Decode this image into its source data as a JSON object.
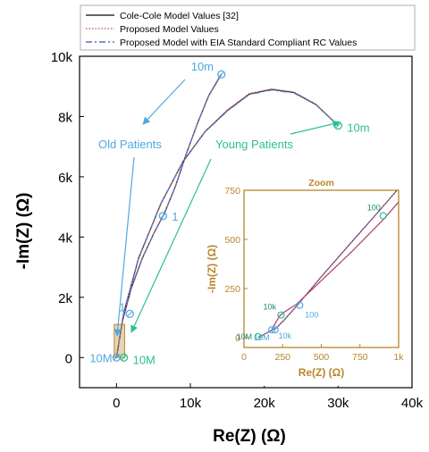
{
  "colors": {
    "cole": "#333333",
    "proposed": "#d4606e",
    "eia": "#5a72c8",
    "old": "#4fa9e0",
    "young": "#2bbf98",
    "inset": "#b8862b"
  },
  "chart_data": [
    {
      "type": "line",
      "xlabel": "Re(Z) (Ω)",
      "ylabel": "-Im(Z) (Ω)",
      "xlim": [
        -5000,
        40000
      ],
      "ylim": [
        -1000,
        10000
      ],
      "x_ticks": [
        {
          "v": 0,
          "label": "0"
        },
        {
          "v": 10000,
          "label": "10k"
        },
        {
          "v": 20000,
          "label": "20k"
        },
        {
          "v": 30000,
          "label": "30k"
        },
        {
          "v": 40000,
          "label": "40k"
        }
      ],
      "y_ticks": [
        {
          "v": 0,
          "label": "0"
        },
        {
          "v": 2000,
          "label": "2k"
        },
        {
          "v": 4000,
          "label": "4k"
        },
        {
          "v": 6000,
          "label": "6k"
        },
        {
          "v": 8000,
          "label": "8k"
        },
        {
          "v": 10000,
          "label": "10k"
        }
      ],
      "legend_position": "top",
      "legend": [
        {
          "label": "Cole-Cole Model Values [32]",
          "style": "solid",
          "color": "#333333"
        },
        {
          "label": "Proposed Model Values",
          "style": "dotted",
          "color": "#d4606e"
        },
        {
          "label": "Proposed Model with EIA Standard Compliant RC Values",
          "style": "dashdot",
          "color": "#5a72c8"
        }
      ],
      "series": [
        {
          "group": "old",
          "style": "solid",
          "x": [
            0,
            800,
            2000,
            3500,
            5000,
            6500,
            8000,
            9500,
            11000,
            12500,
            14200
          ],
          "y": [
            0,
            1200,
            2300,
            3300,
            4100,
            4800,
            5700,
            6800,
            7800,
            8700,
            9400
          ]
        },
        {
          "group": "old",
          "style": "dotted",
          "x": [
            0,
            800,
            2000,
            3500,
            5000,
            6500,
            8000,
            9500,
            11000,
            12500,
            14200
          ],
          "y": [
            0,
            1180,
            2280,
            3290,
            4110,
            4810,
            5710,
            6810,
            7790,
            8690,
            9380
          ]
        },
        {
          "group": "old",
          "style": "dashdot",
          "x": [
            0,
            800,
            2000,
            3500,
            5000,
            6500,
            8000,
            9500,
            11000,
            12500,
            14200
          ],
          "y": [
            0,
            1220,
            2320,
            3320,
            4090,
            4790,
            5690,
            6790,
            7810,
            8710,
            9420
          ]
        },
        {
          "group": "young",
          "style": "solid",
          "x": [
            0,
            1000,
            3000,
            6000,
            9000,
            12000,
            15000,
            18000,
            21000,
            24000,
            27000,
            30000
          ],
          "y": [
            0,
            1500,
            3300,
            5100,
            6500,
            7500,
            8200,
            8750,
            8900,
            8800,
            8400,
            7700
          ]
        },
        {
          "group": "young",
          "style": "dotted",
          "x": [
            0,
            1000,
            3000,
            6000,
            9000,
            12000,
            15000,
            18000,
            21000,
            24000,
            27000,
            30000
          ],
          "y": [
            0,
            1480,
            3280,
            5090,
            6510,
            7510,
            8220,
            8770,
            8920,
            8820,
            8410,
            7700
          ]
        },
        {
          "group": "young",
          "style": "dashdot",
          "x": [
            0,
            1000,
            3000,
            6000,
            9000,
            12000,
            15000,
            18000,
            21000,
            24000,
            27000,
            30000
          ],
          "y": [
            0,
            1520,
            3320,
            5110,
            6490,
            7490,
            8180,
            8730,
            8880,
            8780,
            8390,
            7700
          ]
        }
      ],
      "markers": [
        {
          "group": "old",
          "x": 14200,
          "y": 9400,
          "label": "10m"
        },
        {
          "group": "old",
          "x": 6300,
          "y": 4700,
          "label": "1"
        },
        {
          "group": "old",
          "x": 1800,
          "y": 1450,
          "label": "1"
        },
        {
          "group": "old",
          "x": 0,
          "y": 0,
          "label": "10M"
        },
        {
          "group": "young",
          "x": 30000,
          "y": 7700,
          "label": "10m"
        },
        {
          "group": "young",
          "x": 1000,
          "y": 0,
          "label": "10M"
        }
      ],
      "annotations": [
        {
          "group": "old",
          "text": "Old Patients"
        },
        {
          "group": "young",
          "text": "Young Patients"
        }
      ]
    },
    {
      "type": "line",
      "title": "Zoom",
      "xlabel": "Re(Z) (Ω)",
      "ylabel": "-Im(Z) (Ω)",
      "xlim": [
        0,
        1000
      ],
      "ylim": [
        -50,
        750
      ],
      "x_ticks": [
        {
          "v": 0,
          "label": "0"
        },
        {
          "v": 250,
          "label": "250"
        },
        {
          "v": 500,
          "label": "500"
        },
        {
          "v": 750,
          "label": "750"
        },
        {
          "v": 1000,
          "label": "1k"
        }
      ],
      "y_ticks": [
        {
          "v": 0,
          "label": "0"
        },
        {
          "v": 250,
          "label": "250"
        },
        {
          "v": 500,
          "label": "500"
        },
        {
          "v": 750,
          "label": "750"
        }
      ],
      "series": [
        {
          "group": "old",
          "style": "solid",
          "x": [
            90,
            150,
            210,
            260,
            350,
            500,
            700,
            880,
            1000
          ],
          "y": [
            0,
            25,
            50,
            90,
            170,
            310,
            490,
            650,
            760
          ]
        },
        {
          "group": "old",
          "style": "dotted",
          "x": [
            90,
            150,
            210,
            260,
            350,
            500,
            700,
            880,
            1000
          ],
          "y": [
            0,
            25,
            50,
            90,
            170,
            310,
            490,
            650,
            760
          ]
        },
        {
          "group": "young",
          "style": "solid",
          "x": [
            180,
            200,
            230,
            260,
            340,
            500,
            700,
            900,
            1000
          ],
          "y": [
            40,
            70,
            110,
            130,
            170,
            290,
            440,
            600,
            690
          ]
        },
        {
          "group": "young",
          "style": "dotted",
          "x": [
            180,
            200,
            230,
            260,
            340,
            500,
            700,
            900,
            1000
          ],
          "y": [
            40,
            70,
            110,
            130,
            170,
            290,
            440,
            600,
            690
          ]
        }
      ],
      "markers": [
        {
          "group": "young",
          "x": 90,
          "y": 5,
          "label": "10M"
        },
        {
          "group": "old",
          "x": 180,
          "y": 40,
          "label": "10M"
        },
        {
          "group": "old",
          "x": 200,
          "y": 40,
          "label": "10k"
        },
        {
          "group": "young",
          "x": 240,
          "y": 115,
          "label": "10k"
        },
        {
          "group": "old",
          "x": 360,
          "y": 165,
          "label": "100"
        },
        {
          "group": "young",
          "x": 900,
          "y": 620,
          "label": "100"
        }
      ]
    }
  ]
}
